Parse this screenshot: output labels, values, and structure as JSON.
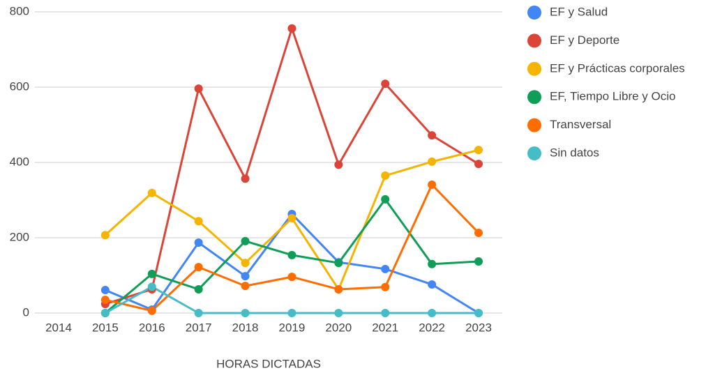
{
  "chart_data": {
    "type": "line",
    "xlabel": "HORAS DICTADAS",
    "categories": [
      "2014",
      "2015",
      "2016",
      "2017",
      "2018",
      "2019",
      "2020",
      "2021",
      "2022",
      "2023"
    ],
    "series": [
      {
        "name": "EF y Salud",
        "color": "#4285f4",
        "values": [
          null,
          61,
          9,
          187,
          98,
          263,
          135,
          117,
          76,
          0
        ]
      },
      {
        "name": "EF y Deporte",
        "color": "#db4437",
        "values": [
          null,
          24,
          63,
          596,
          357,
          756,
          394,
          609,
          472,
          396
        ]
      },
      {
        "name": "EF y Prácticas corporales",
        "color": "#f4b400",
        "values": [
          null,
          207,
          319,
          244,
          133,
          252,
          63,
          365,
          402,
          433
        ]
      },
      {
        "name": "EF, Tiempo Libre y Ocio",
        "color": "#0f9d58",
        "values": [
          null,
          0,
          104,
          63,
          191,
          154,
          133,
          302,
          130,
          137
        ]
      },
      {
        "name": "Transversal",
        "color": "#ff6d01",
        "values": [
          null,
          35,
          6,
          122,
          72,
          96,
          63,
          69,
          341,
          213
        ]
      },
      {
        "name": "Sin datos",
        "color": "#46bdc6",
        "values": [
          null,
          0,
          70,
          0,
          0,
          0,
          0,
          0,
          0,
          0
        ]
      }
    ],
    "ylim": [
      0,
      800
    ],
    "yticks": [
      0,
      200,
      400,
      600,
      800
    ],
    "grid": true,
    "legend": "right"
  }
}
